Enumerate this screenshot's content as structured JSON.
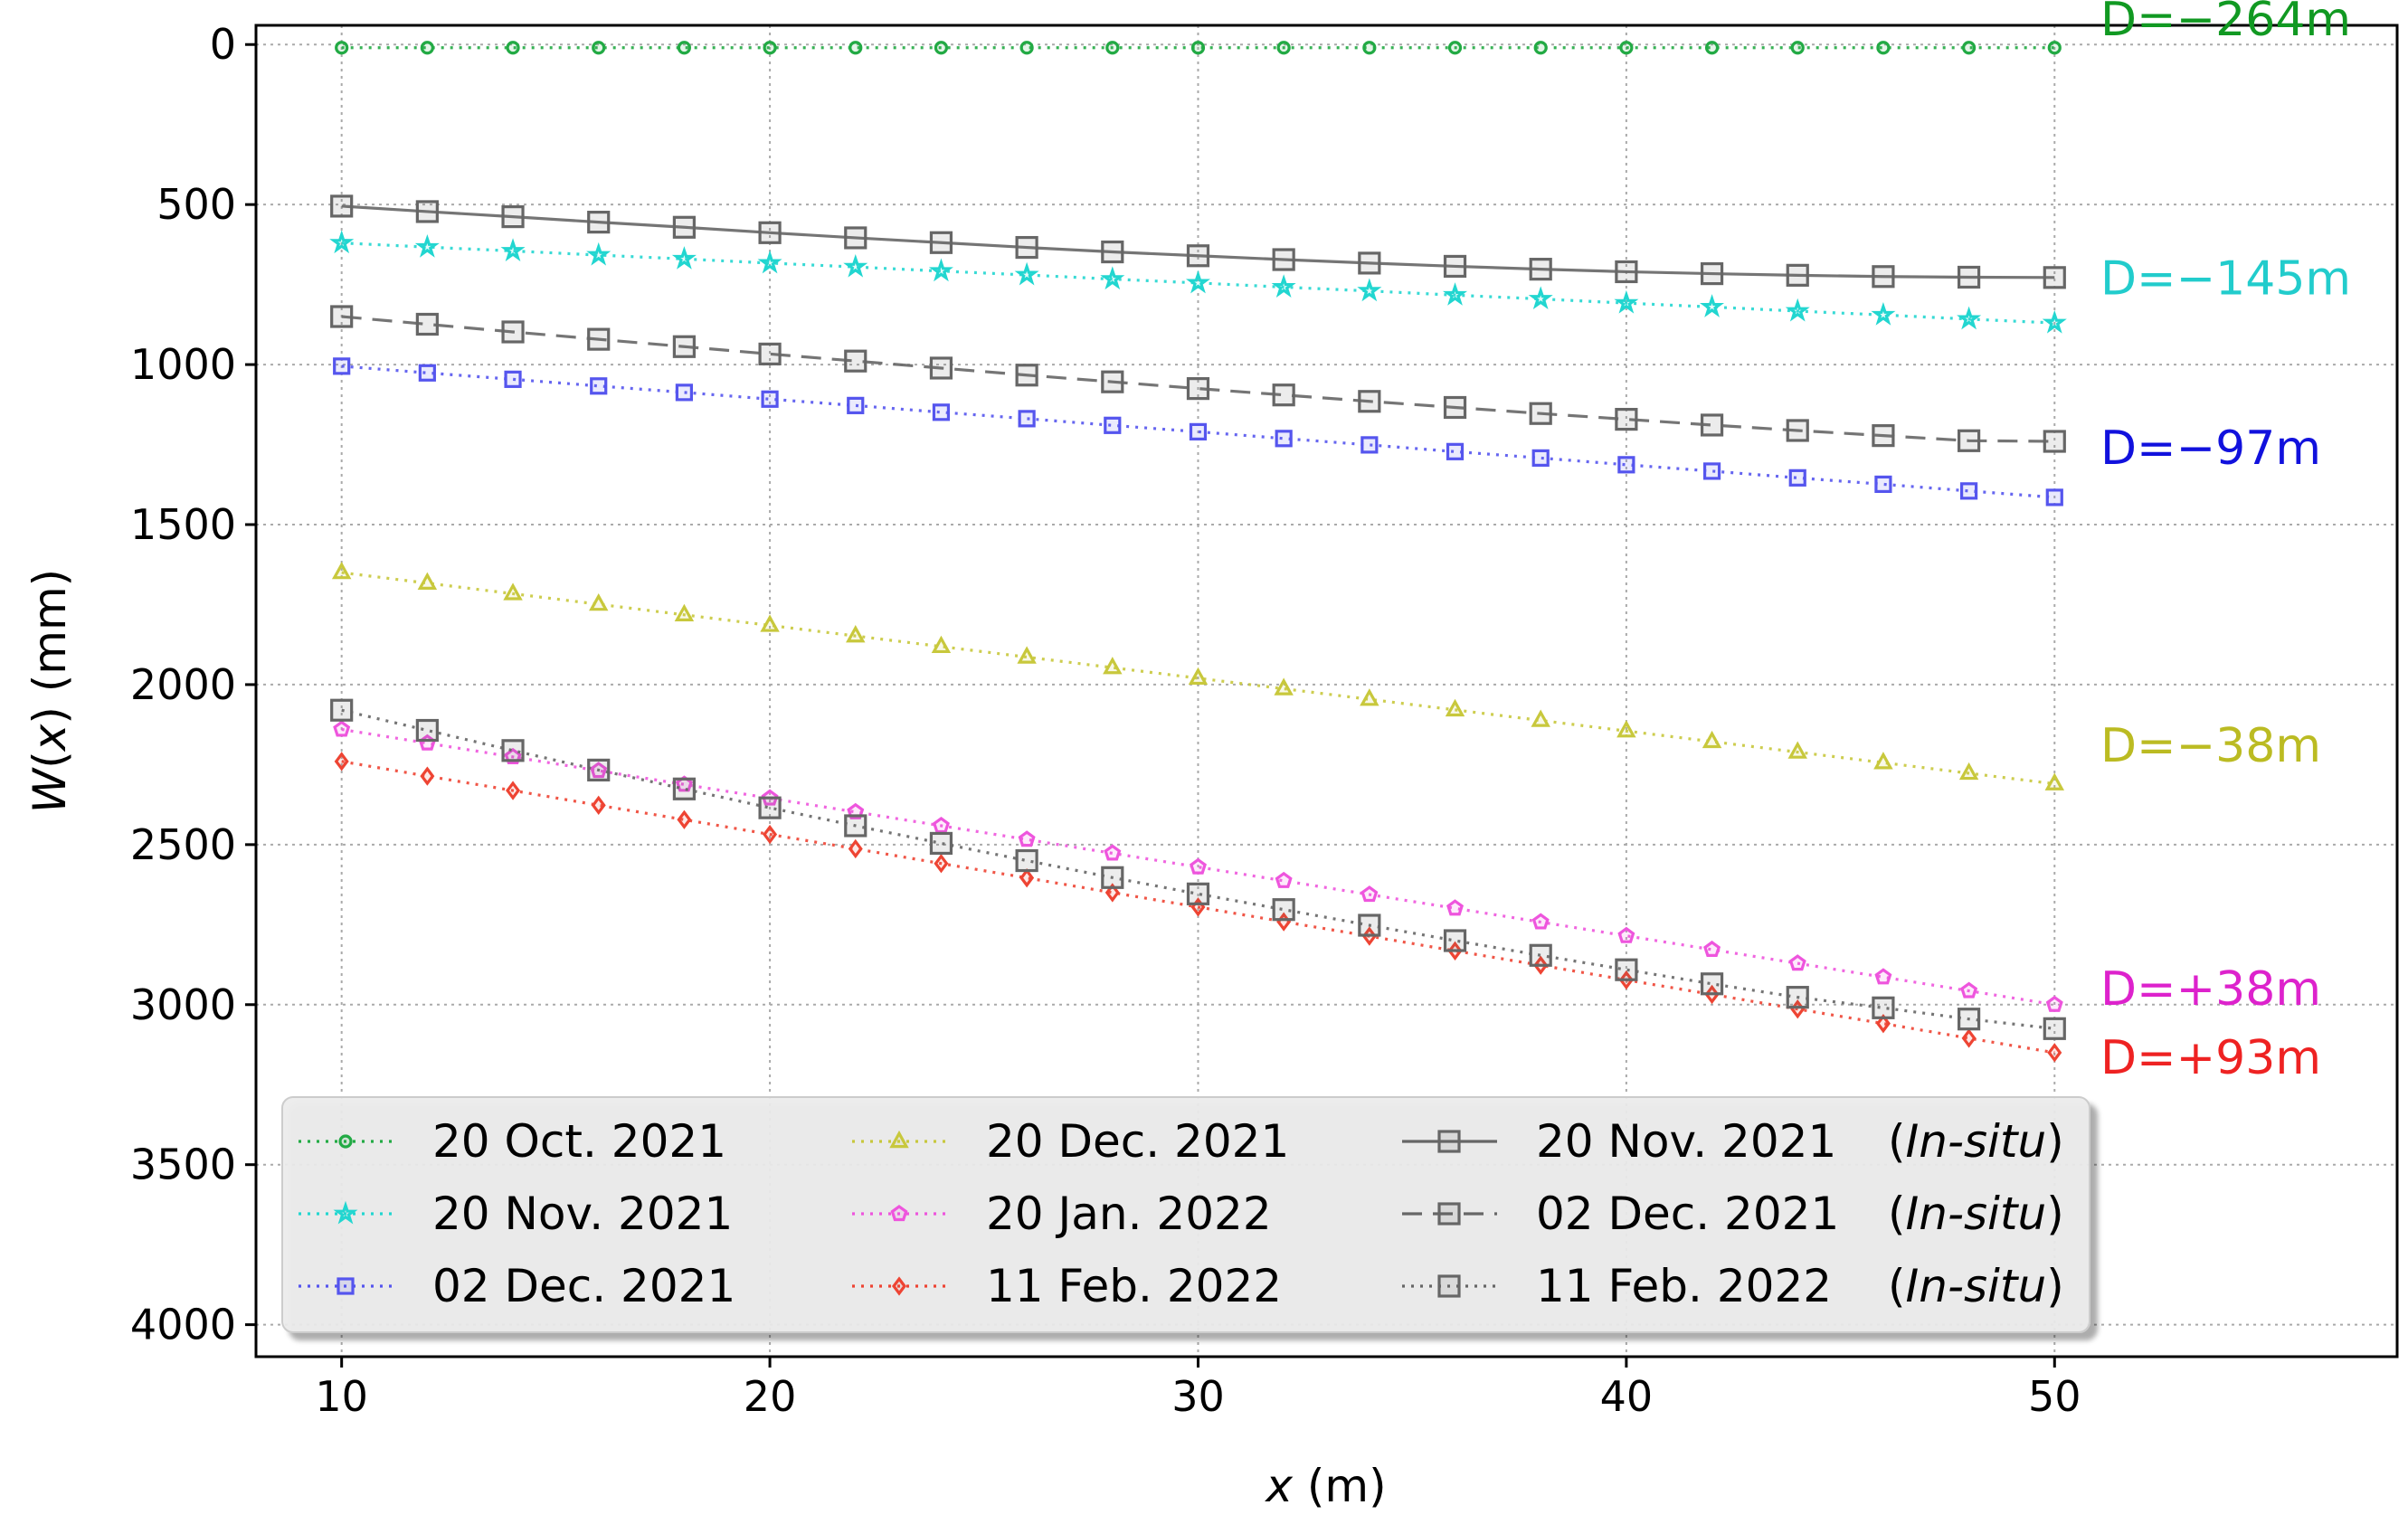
{
  "chart_data": {
    "type": "line",
    "title": "",
    "xlabel": "x (m)",
    "ylabel": "W(x) (mm)",
    "xlim": [
      8,
      58
    ],
    "ylim": [
      4100,
      -60
    ],
    "y_inverted": true,
    "grid": true,
    "xticks": [
      10,
      20,
      30,
      40,
      50
    ],
    "yticks": [
      0,
      500,
      1000,
      1500,
      2000,
      2500,
      3000,
      3500,
      4000
    ],
    "x": [
      10,
      12,
      14,
      16,
      18,
      20,
      22,
      24,
      26,
      28,
      30,
      32,
      34,
      36,
      38,
      40,
      42,
      44,
      46,
      48,
      50
    ],
    "series": [
      {
        "name": "20 Oct. 2021",
        "color": "#22aa44",
        "marker": "circle",
        "linestyle": "dotted",
        "values": [
          10,
          10,
          10,
          10,
          10,
          10,
          10,
          10,
          10,
          10,
          10,
          10,
          10,
          10,
          10,
          10,
          10,
          10,
          10,
          10,
          10
        ]
      },
      {
        "name": "20 Nov. 2021",
        "color": "#22d6d0",
        "marker": "star",
        "linestyle": "dotted",
        "values": [
          620,
          633,
          645,
          658,
          670,
          683,
          695,
          708,
          720,
          733,
          745,
          758,
          770,
          783,
          795,
          808,
          820,
          833,
          845,
          858,
          870
        ]
      },
      {
        "name": "02 Dec. 2021",
        "color": "#5555ee",
        "marker": "square",
        "linestyle": "dotted",
        "values": [
          1005,
          1026,
          1046,
          1067,
          1087,
          1108,
          1128,
          1149,
          1169,
          1190,
          1210,
          1231,
          1251,
          1272,
          1292,
          1313,
          1333,
          1354,
          1374,
          1395,
          1415
        ]
      },
      {
        "name": "20 Dec. 2021",
        "color": "#c8c83c",
        "marker": "triangle",
        "linestyle": "dotted",
        "values": [
          1650,
          1683,
          1716,
          1749,
          1782,
          1815,
          1848,
          1881,
          1914,
          1947,
          1980,
          2013,
          2046,
          2079,
          2112,
          2145,
          2178,
          2211,
          2244,
          2277,
          2310
        ]
      },
      {
        "name": "20 Jan. 2022",
        "color": "#ee55dd",
        "marker": "pentagon",
        "linestyle": "dotted",
        "values": [
          2140,
          2183,
          2226,
          2269,
          2312,
          2355,
          2398,
          2441,
          2484,
          2527,
          2570,
          2613,
          2656,
          2699,
          2742,
          2785,
          2828,
          2871,
          2914,
          2957,
          3000
        ]
      },
      {
        "name": "11 Feb. 2022",
        "color": "#ee4433",
        "marker": "diamond",
        "linestyle": "dotted",
        "values": [
          2240,
          2286,
          2331,
          2377,
          2422,
          2468,
          2513,
          2559,
          2604,
          2650,
          2695,
          2741,
          2786,
          2832,
          2877,
          2923,
          2968,
          3014,
          3059,
          3105,
          3150
        ]
      },
      {
        "name": "20 Nov. 2021",
        "suffix": "(In-situ)",
        "color": "#666666",
        "marker": "square",
        "linestyle": "solid",
        "values": [
          505,
          522,
          538,
          555,
          571,
          588,
          604,
          619,
          634,
          648,
          660,
          672,
          683,
          693,
          702,
          710,
          716,
          721,
          725,
          727,
          728
        ]
      },
      {
        "name": "02 Dec. 2021",
        "suffix": "(In-situ)",
        "color": "#666666",
        "marker": "square",
        "linestyle": "dashed",
        "values": [
          850,
          874,
          898,
          921,
          944,
          967,
          989,
          1011,
          1033,
          1054,
          1075,
          1095,
          1115,
          1134,
          1153,
          1171,
          1189,
          1206,
          1222,
          1238,
          1240
        ]
      },
      {
        "name": "11 Feb. 2022",
        "suffix": "(In-situ)",
        "color": "#666666",
        "marker": "square",
        "linestyle": "dotted",
        "values": [
          2080,
          2143,
          2206,
          2267,
          2326,
          2385,
          2441,
          2496,
          2550,
          2603,
          2654,
          2703,
          2752,
          2800,
          2846,
          2891,
          2935,
          2977,
          3010,
          3045,
          3075
        ]
      }
    ],
    "legend_position": "bottom-left",
    "annotations": [
      {
        "text": "D=−264m",
        "color": "#119922",
        "y": -80
      },
      {
        "text": "D=−145m",
        "color": "#22cccc",
        "y": 730
      },
      {
        "text": "D=−97m",
        "color": "#1111dd",
        "y": 1260
      },
      {
        "text": "D=−38m",
        "color": "#bbbb22",
        "y": 2190
      },
      {
        "text": "D=+38m",
        "color": "#dd22cc",
        "y": 2950
      },
      {
        "text": "D=+93m",
        "color": "#ee2222",
        "y": 3165
      }
    ]
  }
}
